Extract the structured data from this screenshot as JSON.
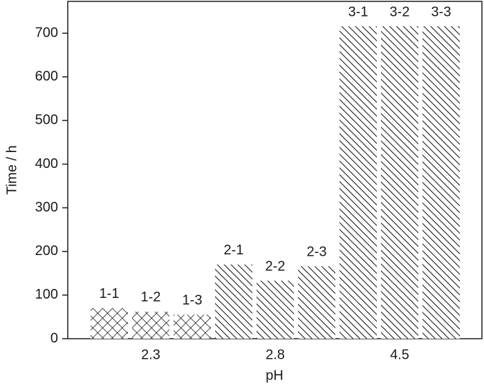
{
  "chart_data": {
    "type": "bar",
    "x_label": "pH",
    "y_label": "Time / h",
    "categories": [
      "2.3",
      "2.8",
      "4.5"
    ],
    "values": [
      [
        70,
        62,
        55
      ],
      [
        170,
        133,
        166
      ],
      [
        716,
        716,
        716
      ]
    ],
    "bar_labels": [
      [
        "1-1",
        "1-2",
        "1-3"
      ],
      [
        "2-1",
        "2-2",
        "2-3"
      ],
      [
        "3-1",
        "3-2",
        "3-3"
      ]
    ],
    "patterns": [
      "crosshatch",
      "diagonal",
      "diagonal"
    ],
    "color": "#1a1a1a",
    "ylim": [
      0,
      773
    ],
    "yticks": [
      0,
      100,
      200,
      300,
      400,
      500,
      600,
      700
    ]
  }
}
